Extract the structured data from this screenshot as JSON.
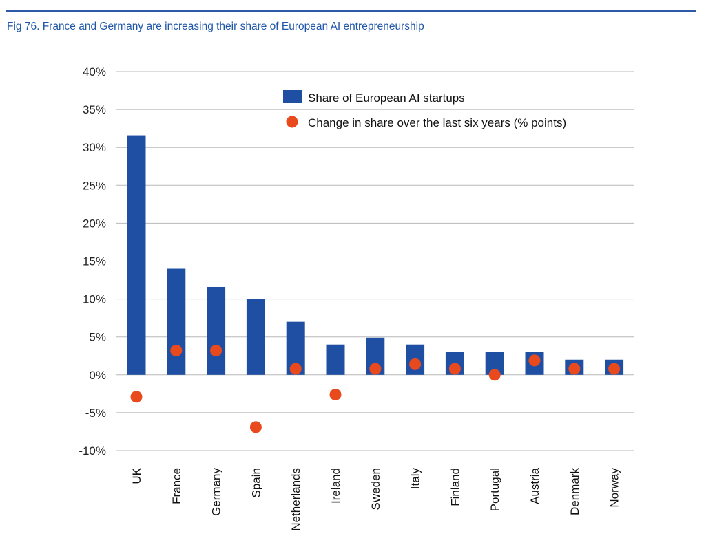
{
  "figure_title": "Fig 76. France and Germany are increasing their share of European AI entrepreneurship",
  "colors": {
    "bar": "#1f4fa3",
    "dot": "#e8491d",
    "grid": "#b8b8b8",
    "title": "#1f57a8"
  },
  "chart_data": {
    "type": "bar",
    "title": "Fig 76. France and Germany are increasing their share of European AI entrepreneurship",
    "xlabel": "",
    "ylabel": "",
    "ylim": [
      -10,
      40
    ],
    "yticks": [
      40,
      35,
      30,
      25,
      20,
      15,
      10,
      5,
      0,
      -5,
      -10
    ],
    "ytick_labels": [
      "40%",
      "35%",
      "30%",
      "25%",
      "20%",
      "15%",
      "10%",
      "5%",
      "0%",
      "-5%",
      "-10%"
    ],
    "categories": [
      "UK",
      "France",
      "Germany",
      "Spain",
      "Netherlands",
      "Ireland",
      "Sweden",
      "Italy",
      "Finland",
      "Portugal",
      "Austria",
      "Denmark",
      "Norway"
    ],
    "series": [
      {
        "name": "Share of European AI startups",
        "type": "bar",
        "values": [
          31.6,
          14.0,
          11.6,
          10.0,
          7.0,
          4.0,
          4.9,
          4.0,
          3.0,
          3.0,
          3.0,
          2.0,
          2.0
        ]
      },
      {
        "name": "Change in share over the last six years (% points)",
        "type": "scatter",
        "values": [
          -2.9,
          3.2,
          3.2,
          -6.9,
          0.8,
          -2.6,
          0.8,
          1.4,
          0.8,
          0.0,
          1.9,
          0.8,
          0.8
        ]
      }
    ],
    "legend_position": "top-right",
    "grid": true
  }
}
